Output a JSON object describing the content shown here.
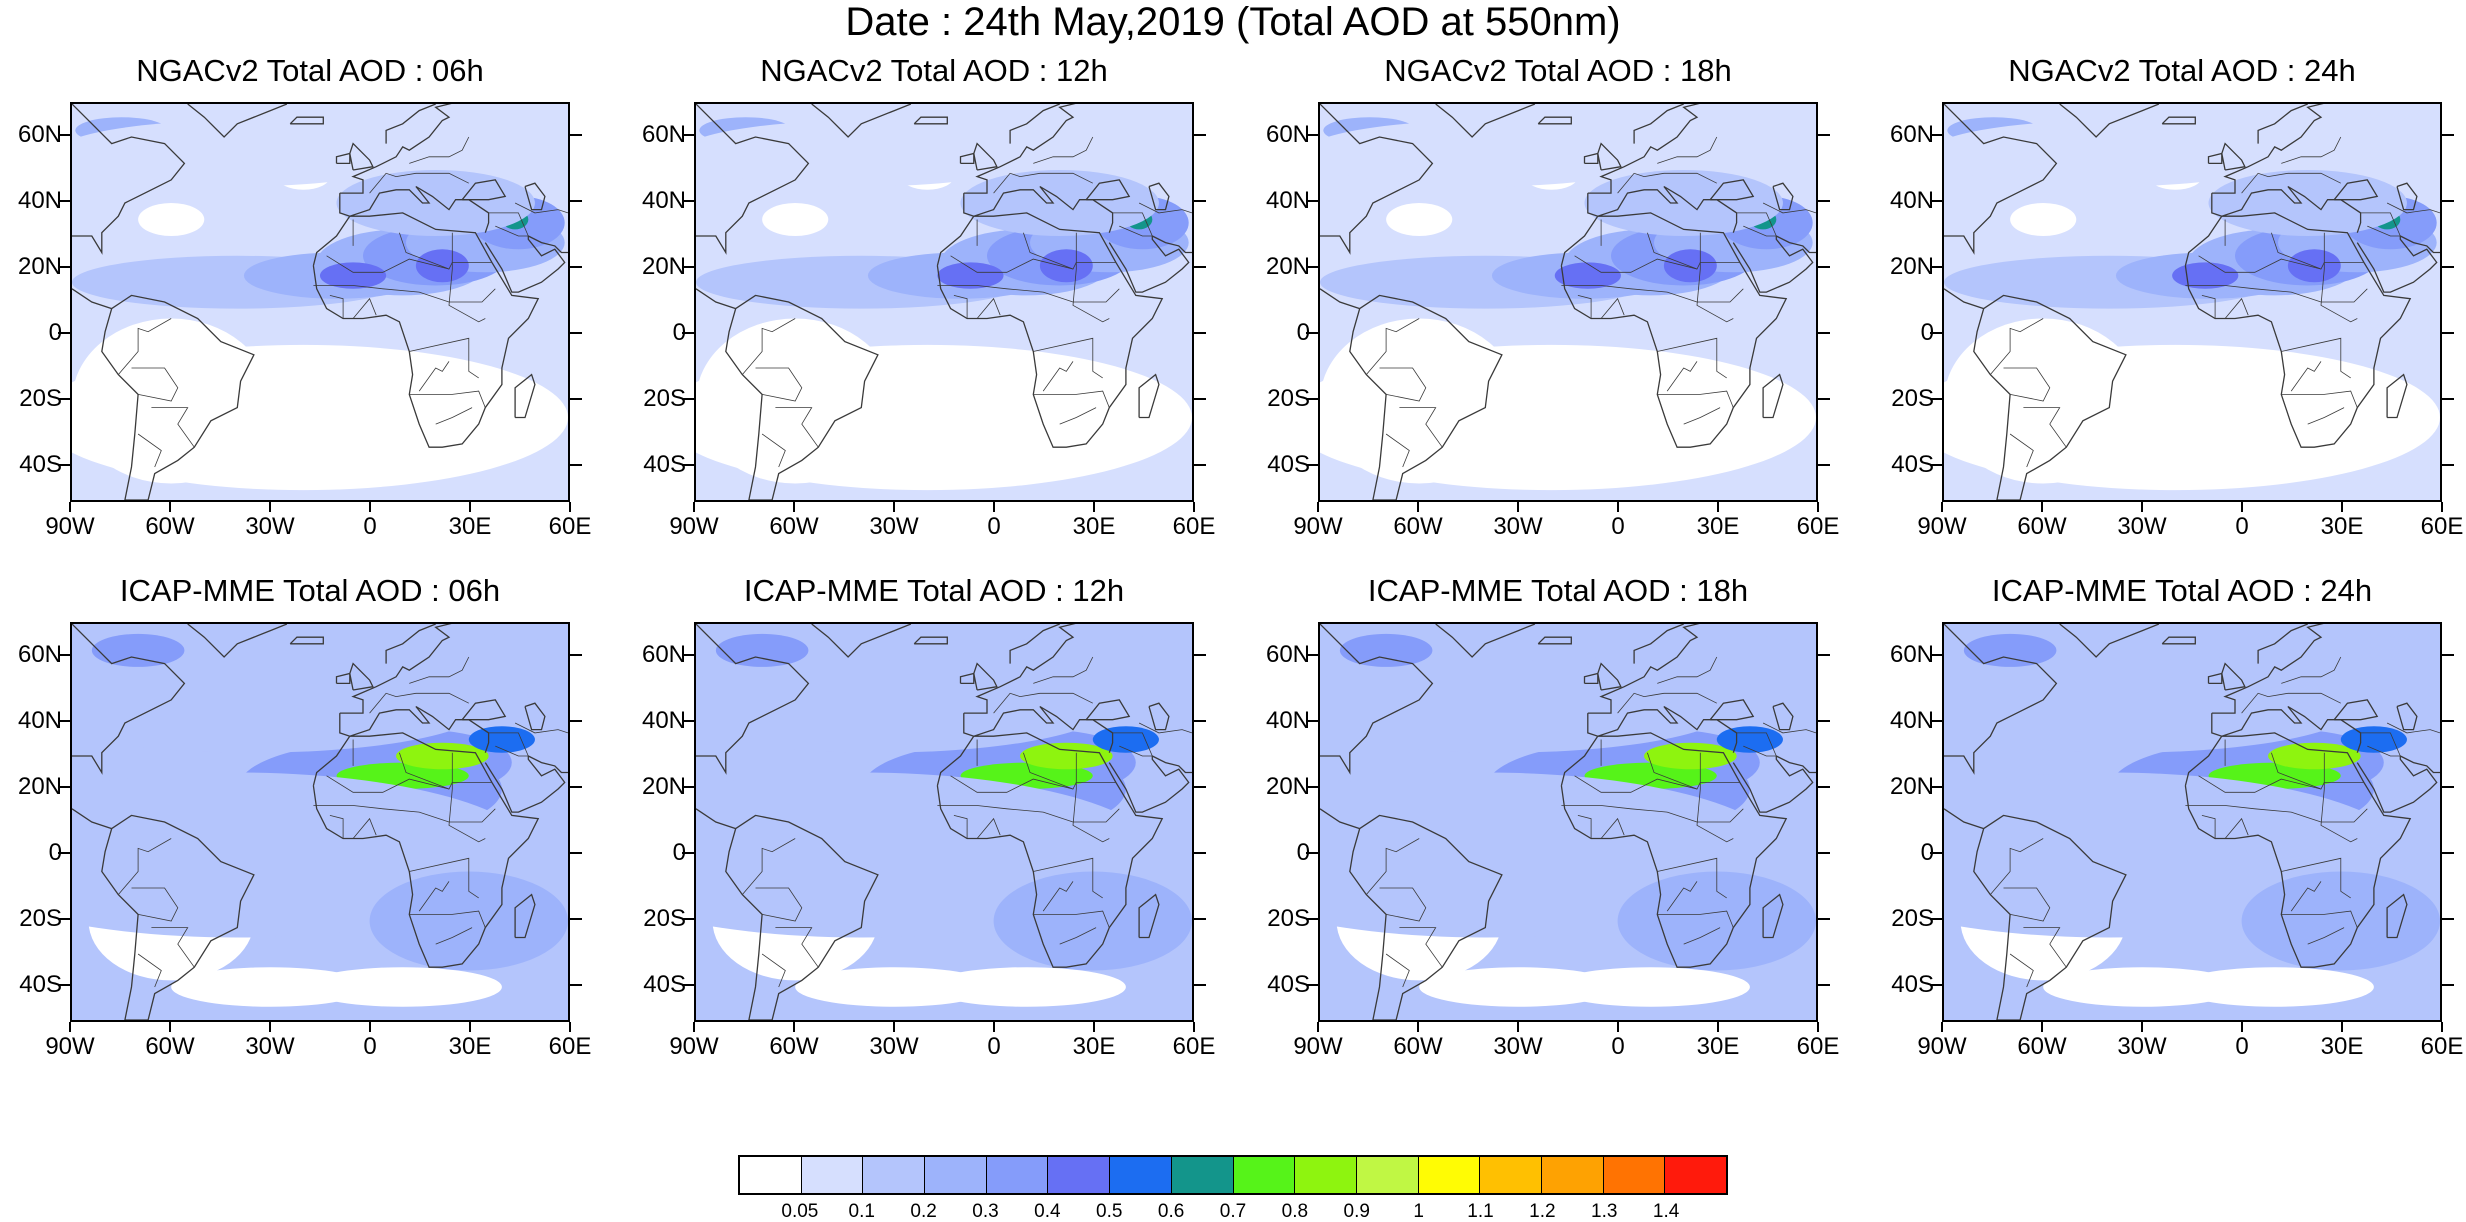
{
  "title": "Date : 24th May,2019 (Total AOD at 550nm)",
  "lat_labels": [
    "60N",
    "40N",
    "20N",
    "0",
    "20S",
    "40S"
  ],
  "lon_labels": [
    "90W",
    "60W",
    "30W",
    "0",
    "30E",
    "60E"
  ],
  "panels": [
    {
      "title": "NGACv2 Total AOD : 06h",
      "model": "NGACv2",
      "hour": 6
    },
    {
      "title": "NGACv2 Total AOD : 12h",
      "model": "NGACv2",
      "hour": 12
    },
    {
      "title": "NGACv2 Total AOD : 18h",
      "model": "NGACv2",
      "hour": 18
    },
    {
      "title": "NGACv2 Total AOD : 24h",
      "model": "NGACv2",
      "hour": 24
    },
    {
      "title": "ICAP-MME Total AOD : 06h",
      "model": "ICAP-MME",
      "hour": 6
    },
    {
      "title": "ICAP-MME Total AOD : 12h",
      "model": "ICAP-MME",
      "hour": 12
    },
    {
      "title": "ICAP-MME Total AOD : 18h",
      "model": "ICAP-MME",
      "hour": 18
    },
    {
      "title": "ICAP-MME Total AOD : 24h",
      "model": "ICAP-MME",
      "hour": 24
    }
  ],
  "colorbar": {
    "labels": [
      "0.05",
      "0.1",
      "0.2",
      "0.3",
      "0.4",
      "0.5",
      "0.6",
      "0.7",
      "0.8",
      "0.9",
      "1",
      "1.1",
      "1.2",
      "1.3",
      "1.4"
    ],
    "colors": [
      "#ffffff",
      "#d6dffe",
      "#b4c5fc",
      "#9db3fb",
      "#859cfa",
      "#6670f4",
      "#1c6df1",
      "#13958b",
      "#56f319",
      "#8ef40f",
      "#c0f744",
      "#fffc04",
      "#ffc001",
      "#fea202",
      "#ff7302",
      "#ff1a0c"
    ]
  },
  "map_colors": {
    "land_outline": "#3a3a3a",
    "background": "#ffffff"
  }
}
